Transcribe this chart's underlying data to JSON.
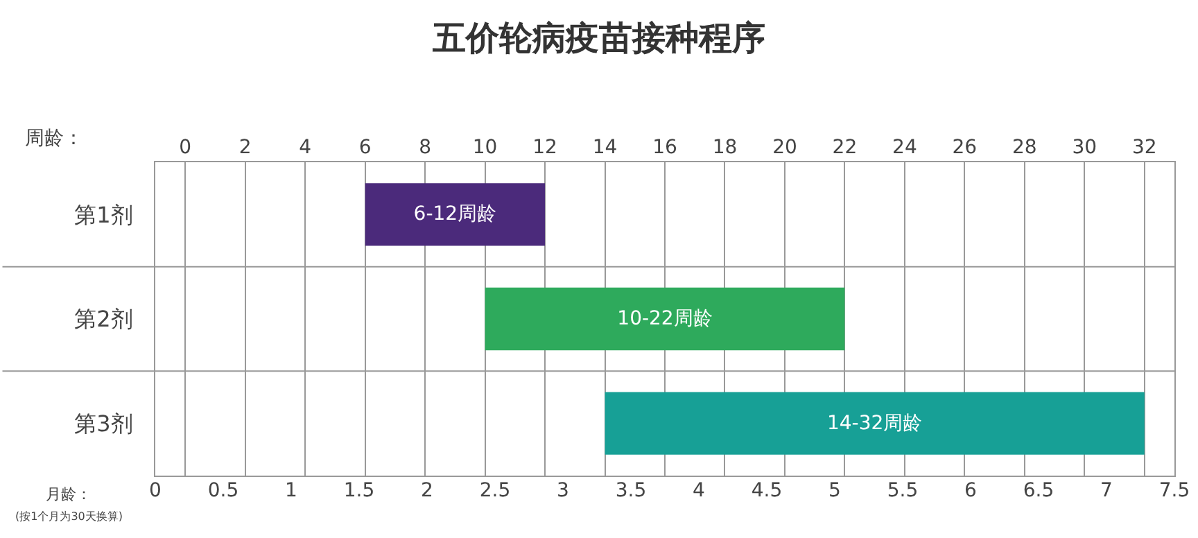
{
  "chart_data": {
    "type": "bar",
    "title": "五价轮病疫苗接种程序",
    "orientation": "horizontal",
    "categories": [
      "第1剂",
      "第2剂",
      "第3剂"
    ],
    "base": [
      6,
      10,
      14
    ],
    "values": [
      6,
      12,
      18
    ],
    "colors": [
      "#4b2a7b",
      "#2eaa5c",
      "#17a096"
    ],
    "value_labels": [
      "6-12周龄",
      "10-22周龄",
      "14-32周龄"
    ],
    "xlabel": "周龄：",
    "x2label": "月龄：",
    "xlim": [
      -1,
      33
    ],
    "xticks": [
      0,
      2,
      4,
      6,
      8,
      10,
      12,
      14,
      16,
      18,
      20,
      22,
      24,
      26,
      28,
      30,
      32
    ],
    "x2lim": [
      0,
      7.5
    ],
    "x2ticks": [
      0,
      0.5,
      1,
      1.5,
      2,
      2.5,
      3,
      3.5,
      4,
      4.5,
      5,
      5.5,
      6,
      6.5,
      7,
      7.5
    ],
    "annotations": [
      "(按1个月为30天换算)"
    ],
    "grid": true,
    "legend": false
  }
}
